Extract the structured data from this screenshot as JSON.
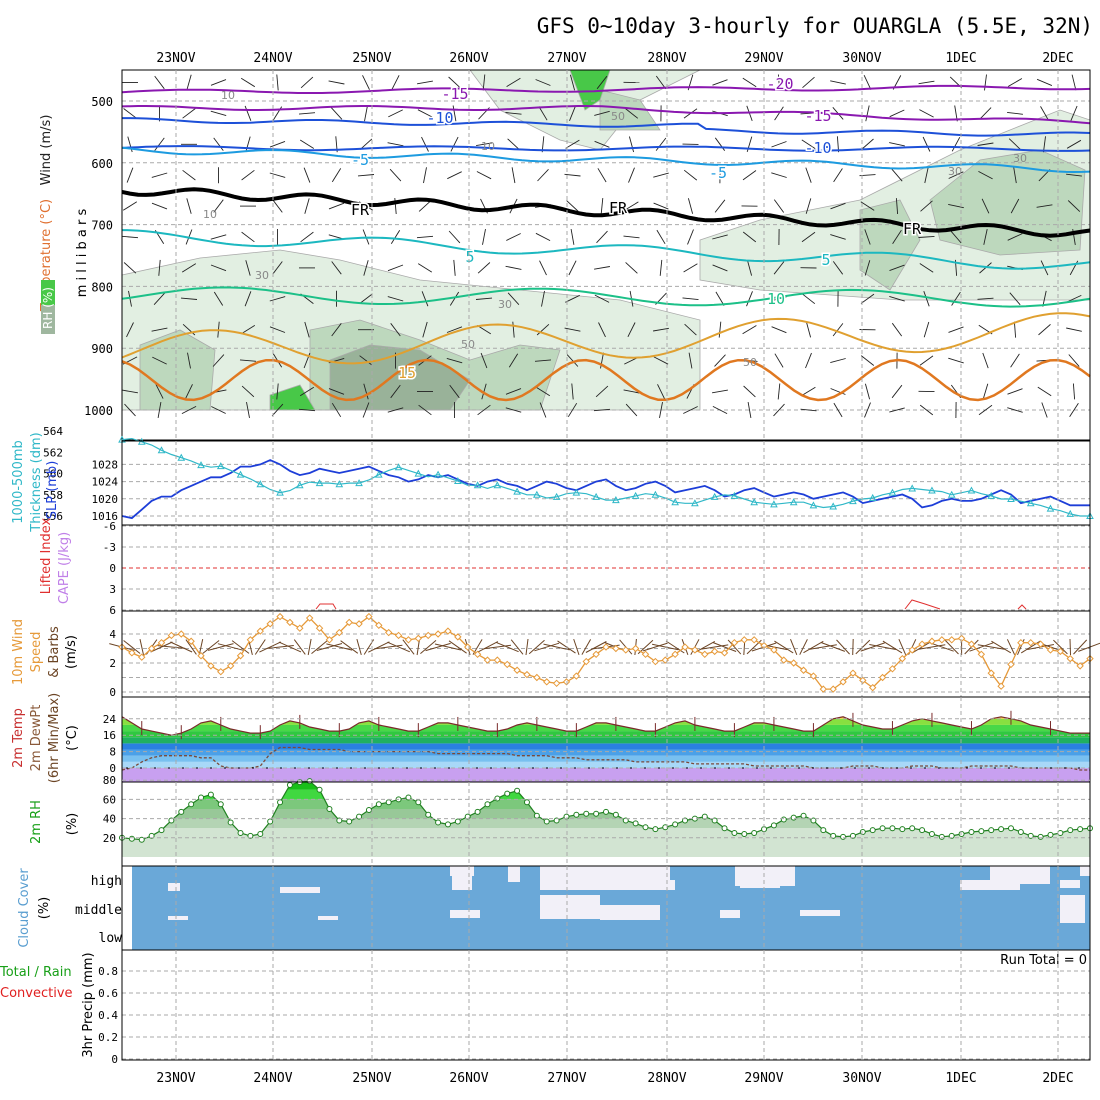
{
  "title": "GFS 0~10day 3-hourly for OUARGLA (5.5E, 32N)",
  "colors": {
    "grid": "#aaaaaa",
    "rh_light": "#e2efe2",
    "rh_mid": "#bdd8bd",
    "rh_dark": "#99b299",
    "rh_green": "#48c848",
    "wind_label": "#222222",
    "temp_purple": "#8a18b0",
    "temp_blue": "#1d50d8",
    "temp_sky": "#1d9be0",
    "temp_black": "#000000",
    "temp_cyan": "#1cb8c0",
    "temp_teal": "#1cc088",
    "temp_orange": "#e0a030",
    "temp_dorange": "#e07820",
    "thickness": "#30b8c8",
    "slp": "#1d3ed8",
    "li_red": "#e03030",
    "cape_violet": "#c080e8",
    "wind10": "#e69a3a",
    "barb10": "#6b4424",
    "cloud": "#6aa8d8",
    "cloud_clear": "#f2f0f8",
    "precip_total": "#18a018",
    "precip_conv": "#e02020"
  },
  "panels": {
    "upper": {
      "ylabel_wind": "Wind (m/s)",
      "ylabel_temp": "Temperature (°C)",
      "ylabel_rh": "RH (%)",
      "ylabel_mb": "m i l l i b a r s"
    },
    "thickness": {
      "label1": "1000-500mb",
      "label2": "Thickness (dm)",
      "label3": "SLP (mb)"
    },
    "stability": {
      "label1": "Lifted Index",
      "label2": "CAPE (J/kg)"
    },
    "wind10": {
      "label1": "10m Wind",
      "label2": "Speed",
      "label3": "& Barbs",
      "label4": "(m/s)"
    },
    "temp2m": {
      "label1": "2m Temp",
      "label2": "2m DewPt",
      "label3": "(6hr Min/Max)",
      "label4": "(°C)"
    },
    "rh2m": {
      "label1": "2m RH",
      "label2": "(%)"
    },
    "cloud": {
      "label1": "Cloud Cover",
      "label2": "(%)",
      "levels": [
        "high",
        "middle",
        "low"
      ]
    },
    "precip": {
      "label1": "Total / Rain",
      "label2": "Convective",
      "label3": "3hr Precip (mm)",
      "run_total": "Run Total = 0"
    }
  },
  "chart_data": [
    {
      "type": "contour",
      "name": "upper-air cross-section",
      "ylim": [
        1000,
        450
      ],
      "y_ticks": [
        500,
        600,
        700,
        800,
        900,
        1000
      ],
      "dates": [
        "23NOV",
        "24NOV",
        "25NOV",
        "26NOV",
        "27NOV",
        "28NOV",
        "29NOV",
        "30NOV",
        "1DEC",
        "2DEC"
      ],
      "temperature_labels": [
        "-20",
        "-15",
        "-15",
        "-10",
        "-10",
        "-5",
        "-5",
        "FR",
        "FR",
        "FR",
        "5",
        "5",
        "10",
        "15"
      ],
      "rh_labels": [
        "10",
        "10",
        "10",
        "30",
        "30",
        "30",
        "30",
        "50",
        "50",
        "50"
      ]
    },
    {
      "type": "line",
      "name": "thickness & slp",
      "y_ticks_left": [
        556,
        558,
        560,
        562,
        564
      ],
      "y_ticks_right": [
        1016,
        1020,
        1024,
        1028
      ],
      "series": [
        {
          "name": "SLP (mb)",
          "values": [
            1016,
            1015.5,
            1017.5,
            1019.5,
            1020.5,
            1020.5,
            1022,
            1023,
            1024,
            1025,
            1025,
            1026,
            1027.5,
            1027.5,
            1028,
            1029,
            1028,
            1026.5,
            1025.5,
            1026,
            1027,
            1026.5,
            1026,
            1026.5,
            1027,
            1027.5,
            1026.5,
            1025.5,
            1025,
            1024,
            1024.5,
            1025.5,
            1025,
            1025.5,
            1024.5,
            1023.5,
            1023,
            1024,
            1024.5,
            1023.5,
            1023,
            1022,
            1023,
            1024,
            1023.5,
            1022.5,
            1022,
            1023,
            1024,
            1024.5,
            1023,
            1022,
            1022.5,
            1023.5,
            1024,
            1023,
            1021.5,
            1022,
            1022.5,
            1023,
            1022,
            1020.5,
            1021,
            1022,
            1022.5,
            1021.5,
            1020.5,
            1021,
            1021.5,
            1021,
            1020,
            1020.5,
            1021,
            1021.5,
            1020.5,
            1019,
            1019.5,
            1020,
            1020.5,
            1021,
            1020,
            1018,
            1018.5,
            1019.5,
            1020,
            1019.5,
            1019.5,
            1020,
            1021,
            1022,
            1021,
            1019,
            1019.5,
            1020,
            1020.5,
            1019.5,
            1018.5,
            1018.5,
            1018.5
          ]
        },
        {
          "name": "1000-500mb Thickness (dm)",
          "values": [
            563.2,
            563.3,
            563.0,
            562.7,
            562.2,
            561.8,
            561.5,
            561.2,
            560.8,
            560.6,
            560.7,
            560.3,
            559.9,
            559.5,
            559.0,
            558.5,
            558.2,
            558.4,
            558.9,
            559.2,
            559.1,
            559.1,
            559.0,
            559.1,
            559.1,
            559.4,
            559.9,
            560.3,
            560.6,
            560.3,
            560.0,
            559.7,
            559.9,
            559.6,
            559.3,
            558.9,
            558.9,
            558.6,
            558.9,
            558.6,
            558.3,
            558.0,
            558.0,
            557.7,
            557.8,
            558.1,
            558.2,
            558.1,
            557.8,
            557.5,
            557.5,
            557.7,
            557.9,
            558.1,
            558.0,
            557.7,
            557.3,
            557.2,
            557.2,
            557.5,
            557.8,
            558.0,
            557.9,
            557.6,
            557.3,
            557.2,
            557.1,
            557.2,
            557.3,
            557.3,
            557.0,
            556.8,
            556.9,
            557.1,
            557.4,
            557.6,
            557.7,
            558.0,
            558.2,
            558.5,
            558.6,
            558.5,
            558.4,
            558.3,
            558.0,
            558.2,
            558.4,
            558.1,
            557.9,
            557.6,
            557.6,
            557.4,
            557.2,
            557.0,
            556.7,
            556.5,
            556.2,
            556.0,
            556.0
          ]
        }
      ]
    },
    {
      "type": "line",
      "name": "lifted index & cape",
      "y_ticks": [
        "-6",
        "-3",
        "0",
        "3",
        "6"
      ],
      "series": [
        {
          "name": "Lifted Index",
          "values": []
        }
      ]
    },
    {
      "type": "line",
      "name": "10m wind speed",
      "ylim": [
        0,
        5
      ],
      "y_ticks": [
        0,
        2,
        4
      ],
      "series": [
        {
          "name": "10m Wind Speed (m/s)",
          "values": [
            3.1,
            2.7,
            2.4,
            3.0,
            3.4,
            3.9,
            4.0,
            3.5,
            2.5,
            1.8,
            1.4,
            1.8,
            2.5,
            3.6,
            4.2,
            4.7,
            5.2,
            4.8,
            4.4,
            5.1,
            4.4,
            3.6,
            4.1,
            4.8,
            4.7,
            5.2,
            4.6,
            4.1,
            3.9,
            3.6,
            3.7,
            3.9,
            4.0,
            4.2,
            3.8,
            3.1,
            2.6,
            2.2,
            2.2,
            1.9,
            1.5,
            1.2,
            1.0,
            0.7,
            0.6,
            0.7,
            1.1,
            2.1,
            2.6,
            3.1,
            3.0,
            2.9,
            3.0,
            2.6,
            2.1,
            2.2,
            2.6,
            3.1,
            2.9,
            2.6,
            2.8,
            2.7,
            3.4,
            3.6,
            3.6,
            3.2,
            2.9,
            2.2,
            2.0,
            1.5,
            1.1,
            0.2,
            0.2,
            0.7,
            1.3,
            0.8,
            0.3,
            1.0,
            1.6,
            2.3,
            2.9,
            3.3,
            3.5,
            3.6,
            3.6,
            3.7,
            3.3,
            2.6,
            1.3,
            0.4,
            1.9,
            3.4,
            3.4,
            3.3,
            2.9,
            2.8,
            2.3,
            1.8,
            2.3
          ]
        }
      ]
    },
    {
      "type": "area",
      "name": "2m temperature & dewpoint",
      "ylim": [
        -8,
        27
      ],
      "y_ticks": [
        0,
        8,
        16,
        24
      ],
      "series": [
        {
          "name": "2m Temp (°C)",
          "values": [
            25,
            22,
            19,
            18,
            17,
            16,
            17,
            19,
            22,
            23,
            21,
            19,
            18,
            17,
            17,
            18,
            21,
            23,
            22,
            20,
            19,
            18,
            18,
            19,
            22,
            23,
            21,
            20,
            19,
            18,
            18,
            20,
            22,
            22,
            21,
            20,
            19,
            18,
            18,
            19,
            21,
            22,
            21,
            20,
            19,
            18,
            18,
            20,
            22,
            22,
            21,
            20,
            19,
            18,
            18,
            20,
            22,
            23,
            21,
            20,
            19,
            18,
            18,
            20,
            22,
            22,
            21,
            20,
            19,
            18,
            18,
            21,
            24,
            25,
            23,
            21,
            20,
            19,
            19,
            21,
            23,
            24,
            23,
            22,
            21,
            20,
            19,
            21,
            24,
            25,
            24,
            23,
            21,
            20,
            19,
            18,
            17,
            17,
            17
          ]
        },
        {
          "name": "2m DewPt (°C)",
          "values": [
            -1,
            0,
            3,
            5,
            6,
            6,
            6,
            6,
            5,
            5,
            1,
            0,
            0,
            0,
            1,
            7,
            10,
            10,
            10,
            9,
            9,
            9,
            9,
            8,
            8,
            8,
            8,
            8,
            8,
            8,
            8,
            8,
            7,
            7,
            7,
            7,
            7,
            7,
            7,
            7,
            6,
            6,
            6,
            6,
            5,
            5,
            5,
            4,
            4,
            4,
            4,
            4,
            3,
            3,
            3,
            3,
            3,
            3,
            2,
            2,
            2,
            2,
            2,
            2,
            1,
            1,
            1,
            1,
            1,
            1,
            0,
            0,
            0,
            0,
            1,
            1,
            1,
            0,
            0,
            0,
            1,
            1,
            1,
            0,
            0,
            0,
            1,
            1,
            1,
            1,
            1,
            0,
            0,
            0,
            0,
            0,
            0,
            -1,
            -1
          ]
        }
      ]
    },
    {
      "type": "area",
      "name": "2m relative humidity",
      "ylim": [
        0,
        80
      ],
      "y_ticks": [
        20,
        40,
        60,
        80
      ],
      "series": [
        {
          "name": "2m RH (%)",
          "values": [
            20,
            19,
            18,
            22,
            28,
            38,
            47,
            55,
            62,
            65,
            55,
            36,
            25,
            22,
            24,
            37,
            57,
            75,
            78,
            79,
            70,
            50,
            38,
            37,
            42,
            49,
            55,
            57,
            60,
            62,
            57,
            44,
            36,
            34,
            37,
            42,
            47,
            55,
            61,
            66,
            69,
            57,
            43,
            37,
            38,
            42,
            44,
            45,
            45,
            47,
            44,
            38,
            35,
            31,
            29,
            31,
            34,
            38,
            40,
            42,
            38,
            30,
            25,
            24,
            25,
            29,
            33,
            39,
            41,
            43,
            38,
            28,
            22,
            21,
            22,
            26,
            28,
            30,
            30,
            29,
            30,
            28,
            24,
            21,
            22,
            24,
            26,
            27,
            28,
            29,
            30,
            26,
            22,
            21,
            23,
            25,
            28,
            29,
            30
          ]
        }
      ]
    },
    {
      "type": "heatmap",
      "name": "cloud cover",
      "rows": [
        "high",
        "middle",
        "low"
      ]
    },
    {
      "type": "bar",
      "name": "3hr precipitation",
      "ylim": [
        0,
        1
      ],
      "y_ticks": [
        0,
        0.2,
        0.4,
        0.6,
        0.8
      ],
      "values": []
    }
  ]
}
